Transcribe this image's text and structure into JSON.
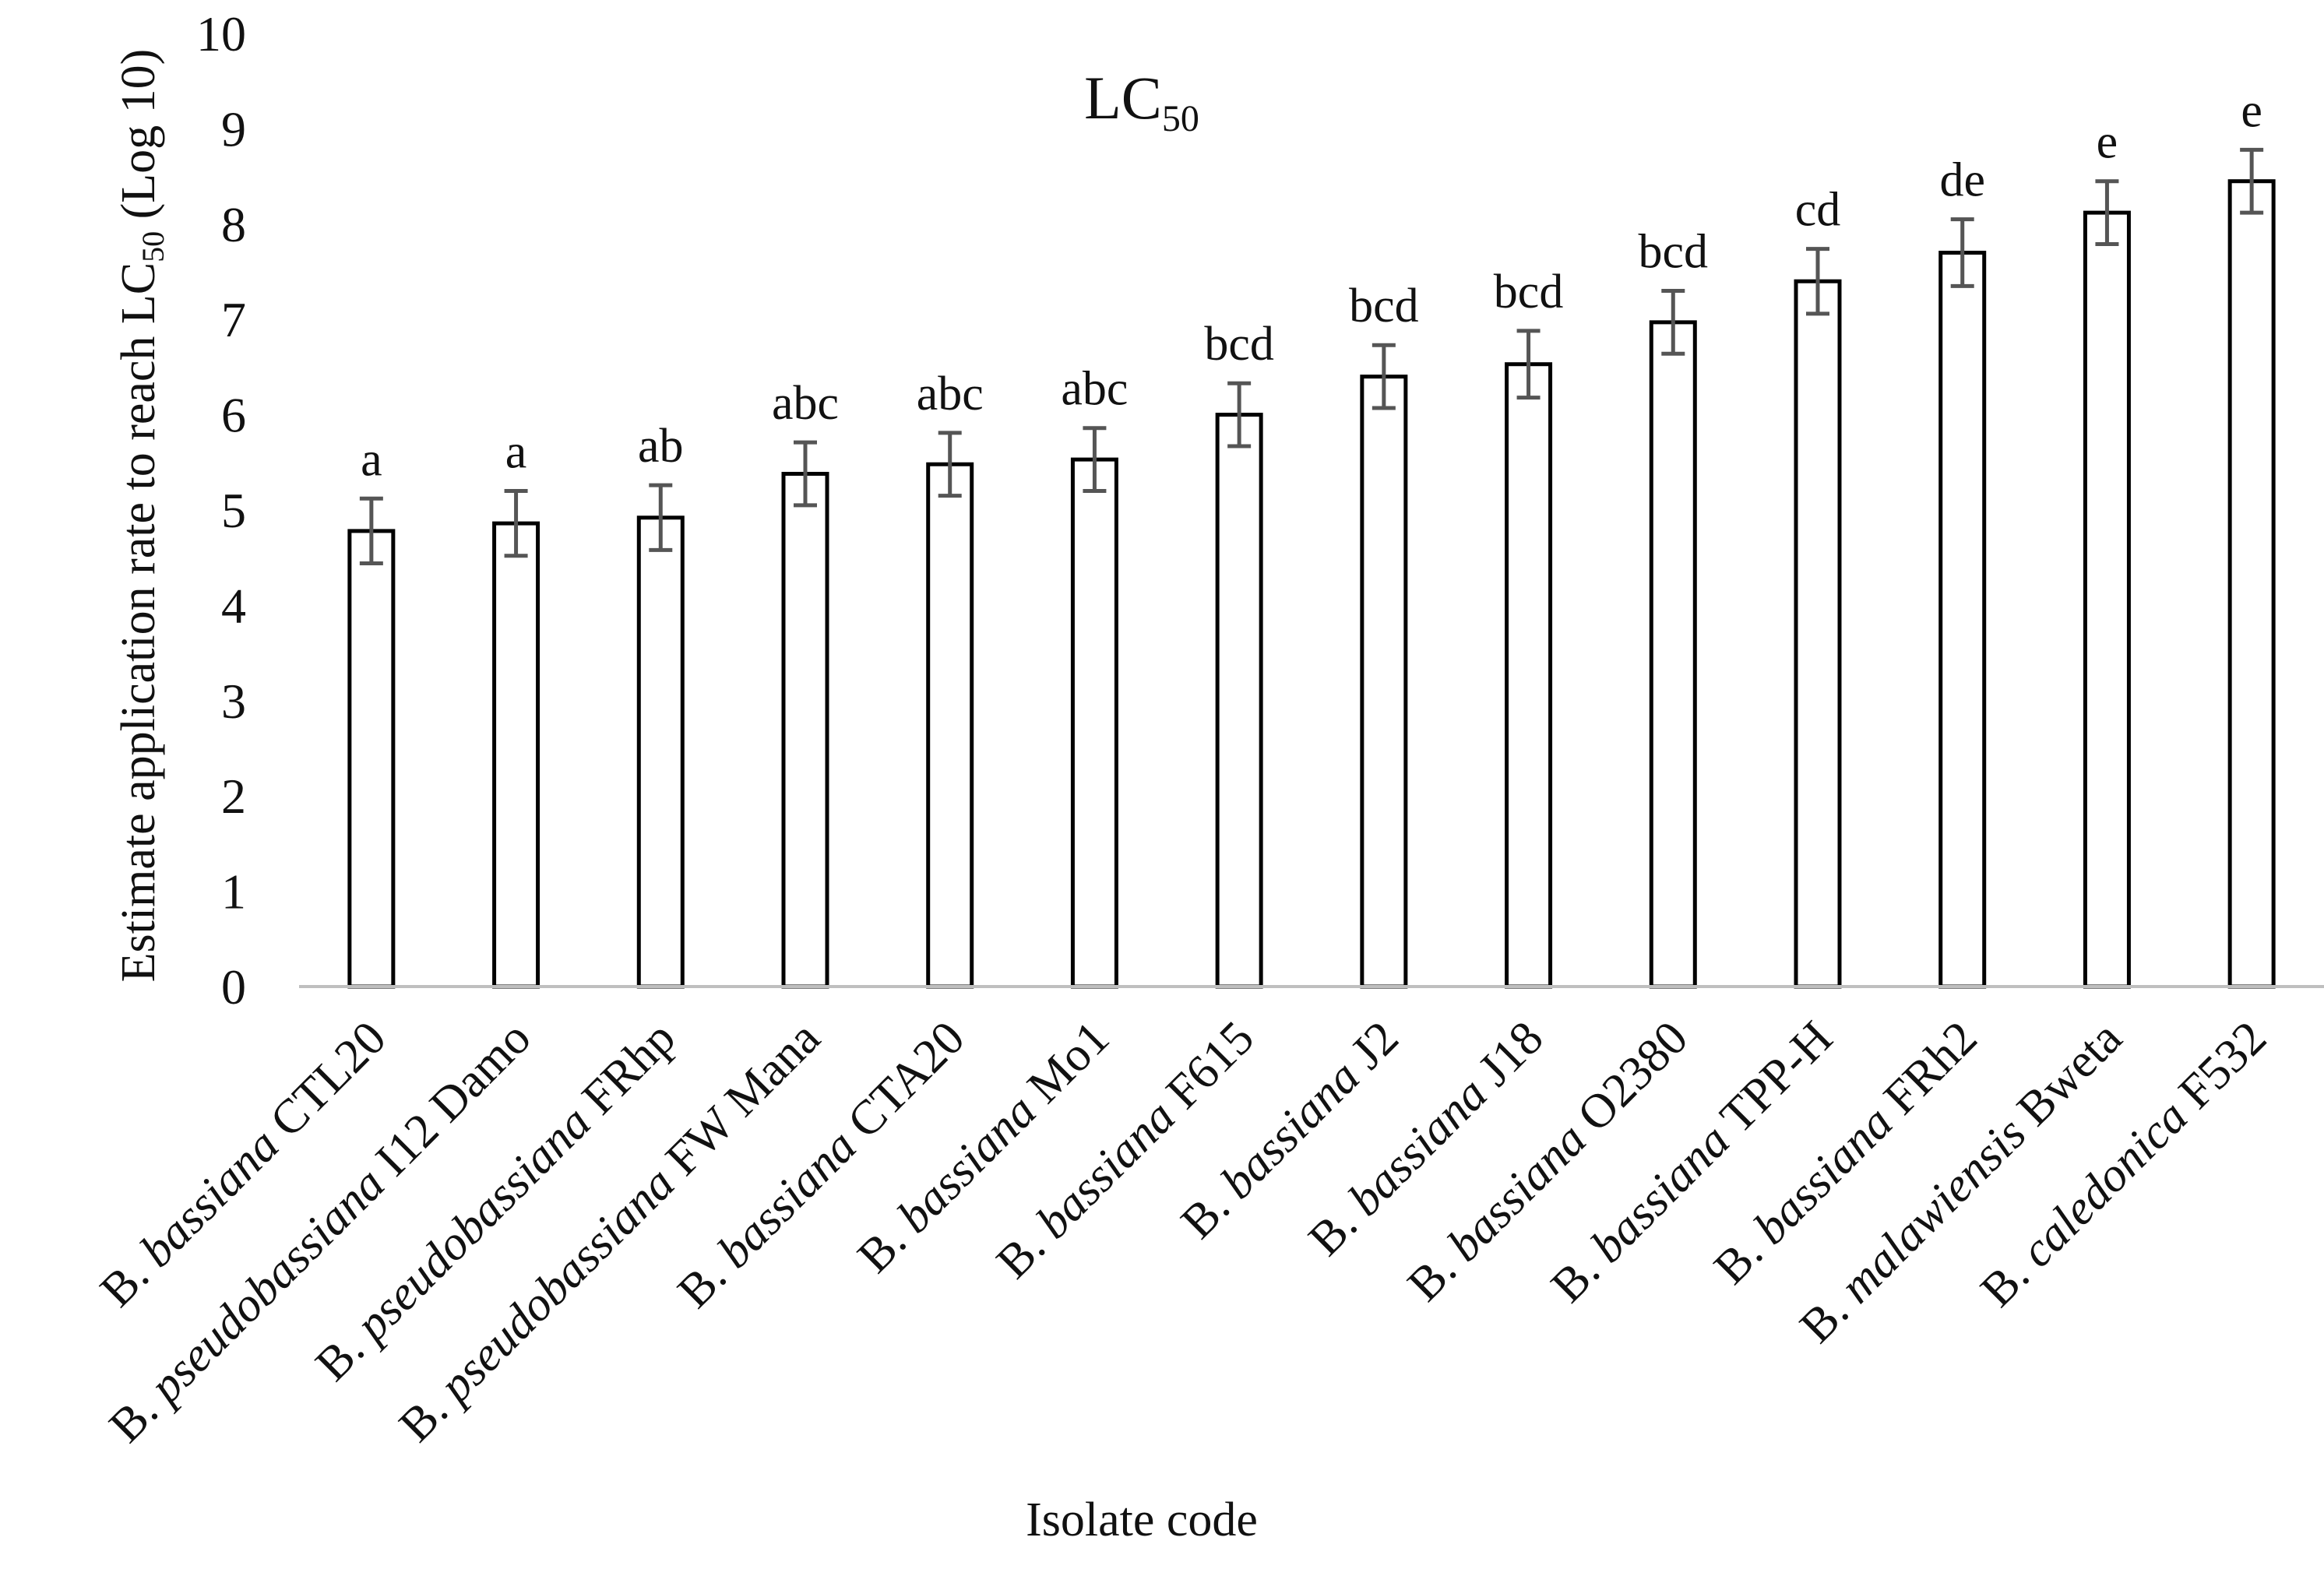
{
  "chart_data": {
    "type": "bar",
    "title": "LC",
    "title_subscript": "50",
    "xlabel": "Isolate code",
    "ylabel": "Estimate application rate to reach LC",
    "ylabel_subscript": "50",
    "ylabel_suffix": " (Log 10)",
    "ylim": [
      0,
      10
    ],
    "yticks": [
      0,
      1,
      2,
      3,
      4,
      5,
      6,
      7,
      8,
      9,
      10
    ],
    "categories": [
      {
        "genus": "B. ",
        "species": "bassiana",
        "code": " CTL20"
      },
      {
        "genus": "B. ",
        "species": "pseudobassiana",
        "code": " I12 Damo"
      },
      {
        "genus": "B. ",
        "species": "pseudobassiana",
        "code": " FRhp"
      },
      {
        "genus": "B. ",
        "species": "pseudobassiana",
        "code": " FW Mana"
      },
      {
        "genus": "B. ",
        "species": "bassiana",
        "code": " CTA20"
      },
      {
        "genus": "B. ",
        "species": "bassiana",
        "code": " Mo1"
      },
      {
        "genus": "B. ",
        "species": "bassiana",
        "code": " F615"
      },
      {
        "genus": "B. ",
        "species": "bassiana",
        "code": " J2"
      },
      {
        "genus": "B. ",
        "species": "bassiana",
        "code": " J18"
      },
      {
        "genus": "B. ",
        "species": "bassiana",
        "code": " O2380"
      },
      {
        "genus": "B. ",
        "species": "bassiana",
        "code": " TPP-H"
      },
      {
        "genus": "B. ",
        "species": "bassiana",
        "code": " FRh2"
      },
      {
        "genus": "B. ",
        "species": "malawiensis",
        "code": " Bweta"
      },
      {
        "genus": "B. ",
        "species": "caledonica",
        "code": " F532"
      }
    ],
    "values": [
      4.78,
      4.86,
      4.92,
      5.38,
      5.48,
      5.53,
      6.0,
      6.4,
      6.53,
      6.97,
      7.4,
      7.7,
      8.12,
      8.45
    ],
    "errors": [
      0.34,
      0.34,
      0.34,
      0.33,
      0.33,
      0.33,
      0.33,
      0.33,
      0.35,
      0.33,
      0.34,
      0.35,
      0.33,
      0.33
    ],
    "significance_letters": [
      "a",
      "a",
      "ab",
      "abc",
      "abc",
      "abc",
      "bcd",
      "bcd",
      "bcd",
      "bcd",
      "cd",
      "de",
      "e",
      "e"
    ],
    "colors": {
      "bar_fill": "#ffffff",
      "bar_stroke": "#000000",
      "error_bar": "#555555",
      "axis": "#bfbfbf",
      "text": "#111111"
    }
  }
}
